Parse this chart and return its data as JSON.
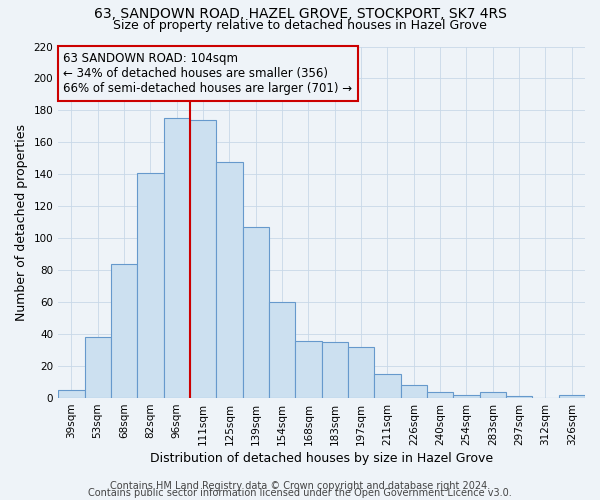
{
  "title_line1": "63, SANDOWN ROAD, HAZEL GROVE, STOCKPORT, SK7 4RS",
  "title_line2": "Size of property relative to detached houses in Hazel Grove",
  "xlabel": "Distribution of detached houses by size in Hazel Grove",
  "ylabel": "Number of detached properties",
  "categories": [
    "39sqm",
    "53sqm",
    "68sqm",
    "82sqm",
    "96sqm",
    "111sqm",
    "125sqm",
    "139sqm",
    "154sqm",
    "168sqm",
    "183sqm",
    "197sqm",
    "211sqm",
    "226sqm",
    "240sqm",
    "254sqm",
    "283sqm",
    "297sqm",
    "312sqm",
    "326sqm"
  ],
  "values": [
    5,
    38,
    84,
    141,
    175,
    174,
    148,
    107,
    60,
    36,
    35,
    32,
    15,
    8,
    4,
    2,
    4,
    1,
    0,
    2
  ],
  "bar_color": "#cce0f0",
  "bar_edge_color": "#6699cc",
  "grid_color": "#c8d8e8",
  "vline_x_idx": 5,
  "vline_color": "#cc0000",
  "annotation_line1": "63 SANDOWN ROAD: 104sqm",
  "annotation_line2": "← 34% of detached houses are smaller (356)",
  "annotation_line3": "66% of semi-detached houses are larger (701) →",
  "annotation_box_color": "#cc0000",
  "ylim": [
    0,
    220
  ],
  "yticks": [
    0,
    20,
    40,
    60,
    80,
    100,
    120,
    140,
    160,
    180,
    200,
    220
  ],
  "footer_line1": "Contains HM Land Registry data © Crown copyright and database right 2024.",
  "footer_line2": "Contains public sector information licensed under the Open Government Licence v3.0.",
  "bg_color": "#eef3f8",
  "title_fontsize": 10,
  "subtitle_fontsize": 9,
  "tick_fontsize": 7.5,
  "label_fontsize": 9,
  "footer_fontsize": 7,
  "annotation_fontsize": 8.5
}
